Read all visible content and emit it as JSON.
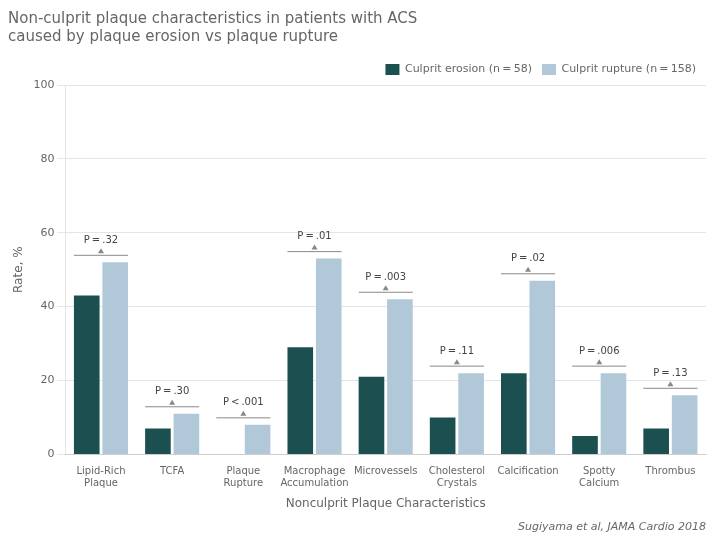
{
  "chart_data": {
    "type": "bar",
    "title": "Non-culprit plaque characteristics in patients with ACS\ncaused by plaque erosion vs plaque rupture",
    "categories": [
      "Lipid-Rich\nPlaque",
      "TCFA",
      "Plaque\nRupture",
      "Macrophage\nAccumulation",
      "Microvessels",
      "Cholesterol\nCrystals",
      "Calcification",
      "Spotty\nCalcium",
      "Thrombus"
    ],
    "series": [
      {
        "name": "Culprit erosion (n = 58)",
        "color": "#1c4f4f",
        "values": [
          43,
          7,
          0,
          29,
          21,
          10,
          22,
          5,
          7
        ]
      },
      {
        "name": "Culprit rupture (n = 158)",
        "color": "#b0c8d8",
        "values": [
          52,
          11,
          8,
          53,
          42,
          22,
          47,
          22,
          16
        ]
      }
    ],
    "ylabel": "Rate, %",
    "xlabel": "Nonculprit Plaque Characteristics",
    "ylim": [
      0,
      100
    ],
    "yticks": [
      0,
      20,
      40,
      60,
      80,
      100
    ],
    "grid": true,
    "legend": "upper right",
    "annotations": [
      "P = .32",
      "P = .30",
      "P < .001",
      "P = .01",
      "P = .003",
      "P = .11",
      "P = .02",
      "P = .006",
      "P = .13"
    ],
    "source": "Sugiyama et al, JAMA Cardio 2018"
  }
}
